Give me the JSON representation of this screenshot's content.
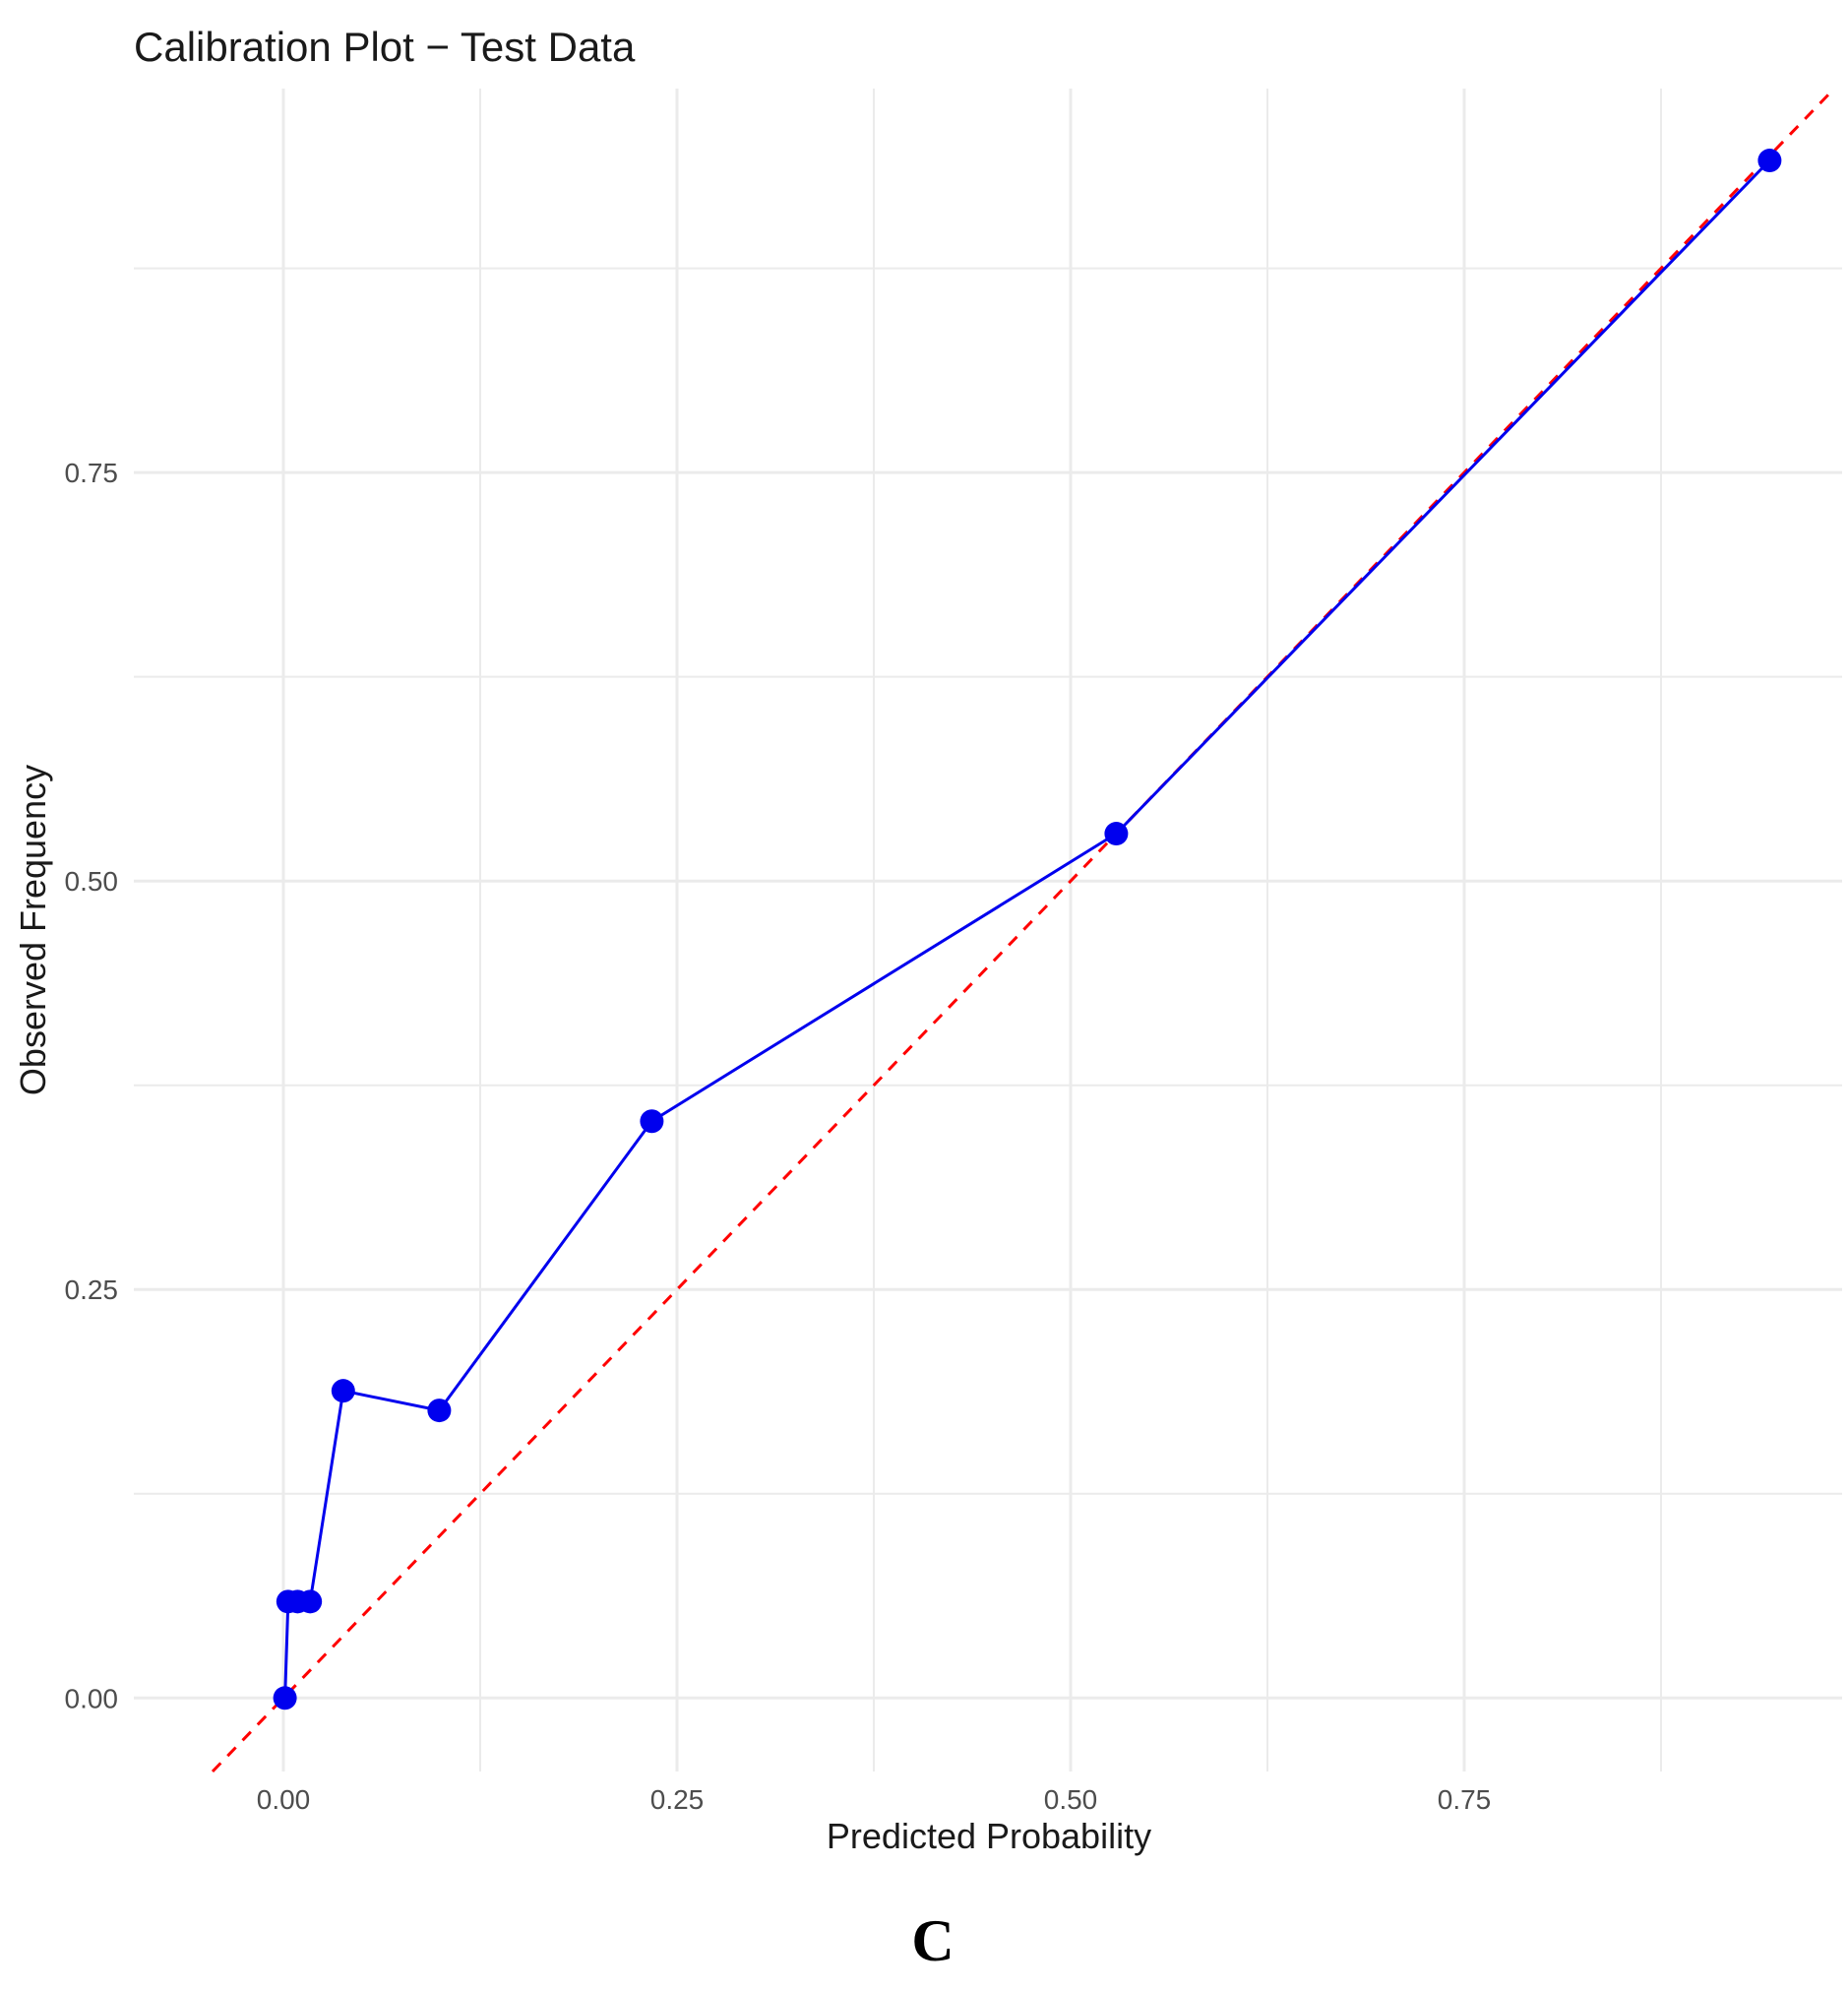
{
  "chart_data": {
    "type": "line",
    "title": "Calibration Plot − Test Data",
    "xlabel": "Predicted Probability",
    "ylabel": "Observed Frequency",
    "xlim": [
      -0.095,
      0.99
    ],
    "ylim": [
      -0.045,
      0.985
    ],
    "x_ticks": [
      0.0,
      0.25,
      0.5,
      0.75
    ],
    "x_tick_labels": [
      "0.00",
      "0.25",
      "0.50",
      "0.75"
    ],
    "y_ticks": [
      0.0,
      0.25,
      0.5,
      0.75
    ],
    "y_tick_labels": [
      "0.00",
      "0.25",
      "0.50",
      "0.75"
    ],
    "grid": true,
    "series": [
      {
        "color": "#0000ee",
        "x": [
          0.001,
          0.003,
          0.009,
          0.017,
          0.038,
          0.099,
          0.234,
          0.529,
          0.944
        ],
        "y": [
          0.0,
          0.059,
          0.059,
          0.059,
          0.188,
          0.176,
          0.353,
          0.529,
          0.941
        ]
      }
    ],
    "reference_line": {
      "color": "#ff0000",
      "style": "dashed",
      "slope": 1,
      "intercept": 0
    }
  },
  "panel_label": "C"
}
